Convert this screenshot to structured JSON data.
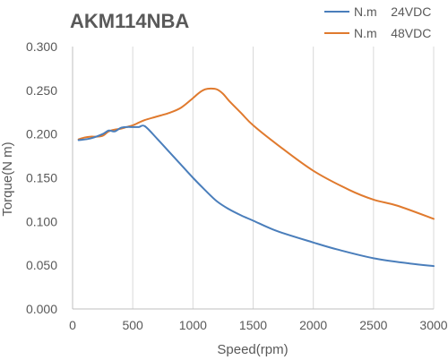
{
  "chart_data": {
    "type": "line",
    "title": "AKM114NBA",
    "xlabel": "Speed(rpm)",
    "ylabel": "Torque(N m)",
    "xlim": [
      0,
      3000
    ],
    "ylim": [
      0,
      0.3
    ],
    "x_ticks": [
      "0",
      "500",
      "1000",
      "1500",
      "2000",
      "2500",
      "3000"
    ],
    "y_ticks": [
      "0.000",
      "0.050",
      "0.100",
      "0.150",
      "0.200",
      "0.250",
      "0.300"
    ],
    "x_tick_values": [
      0,
      500,
      1000,
      1500,
      2000,
      2500,
      3000
    ],
    "y_tick_values": [
      0,
      0.05,
      0.1,
      0.15,
      0.2,
      0.25,
      0.3
    ],
    "grid": "vertical",
    "legend_position": "top-right",
    "series": [
      {
        "name": "N.m    24VDC",
        "color": "#4a7ebb",
        "x": [
          50,
          150,
          250,
          300,
          350,
          400,
          450,
          500,
          550,
          600,
          700,
          800,
          900,
          1000,
          1100,
          1200,
          1300,
          1400,
          1500,
          1700,
          2000,
          2200,
          2500,
          2800,
          3000
        ],
        "y": [
          0.193,
          0.195,
          0.2,
          0.204,
          0.203,
          0.207,
          0.208,
          0.208,
          0.208,
          0.209,
          0.195,
          0.18,
          0.165,
          0.15,
          0.136,
          0.123,
          0.114,
          0.107,
          0.101,
          0.089,
          0.076,
          0.068,
          0.058,
          0.052,
          0.049
        ]
      },
      {
        "name": "N.m    48VDC",
        "color": "#e07a2e",
        "x": [
          50,
          100,
          150,
          200,
          250,
          300,
          350,
          400,
          450,
          500,
          550,
          600,
          700,
          800,
          900,
          1000,
          1050,
          1100,
          1150,
          1200,
          1250,
          1300,
          1400,
          1500,
          1700,
          2000,
          2300,
          2500,
          2700,
          3000
        ],
        "y": [
          0.194,
          0.196,
          0.197,
          0.197,
          0.198,
          0.203,
          0.205,
          0.206,
          0.208,
          0.21,
          0.213,
          0.216,
          0.22,
          0.224,
          0.23,
          0.241,
          0.247,
          0.251,
          0.252,
          0.251,
          0.246,
          0.238,
          0.224,
          0.21,
          0.188,
          0.158,
          0.136,
          0.125,
          0.118,
          0.103
        ]
      }
    ]
  }
}
